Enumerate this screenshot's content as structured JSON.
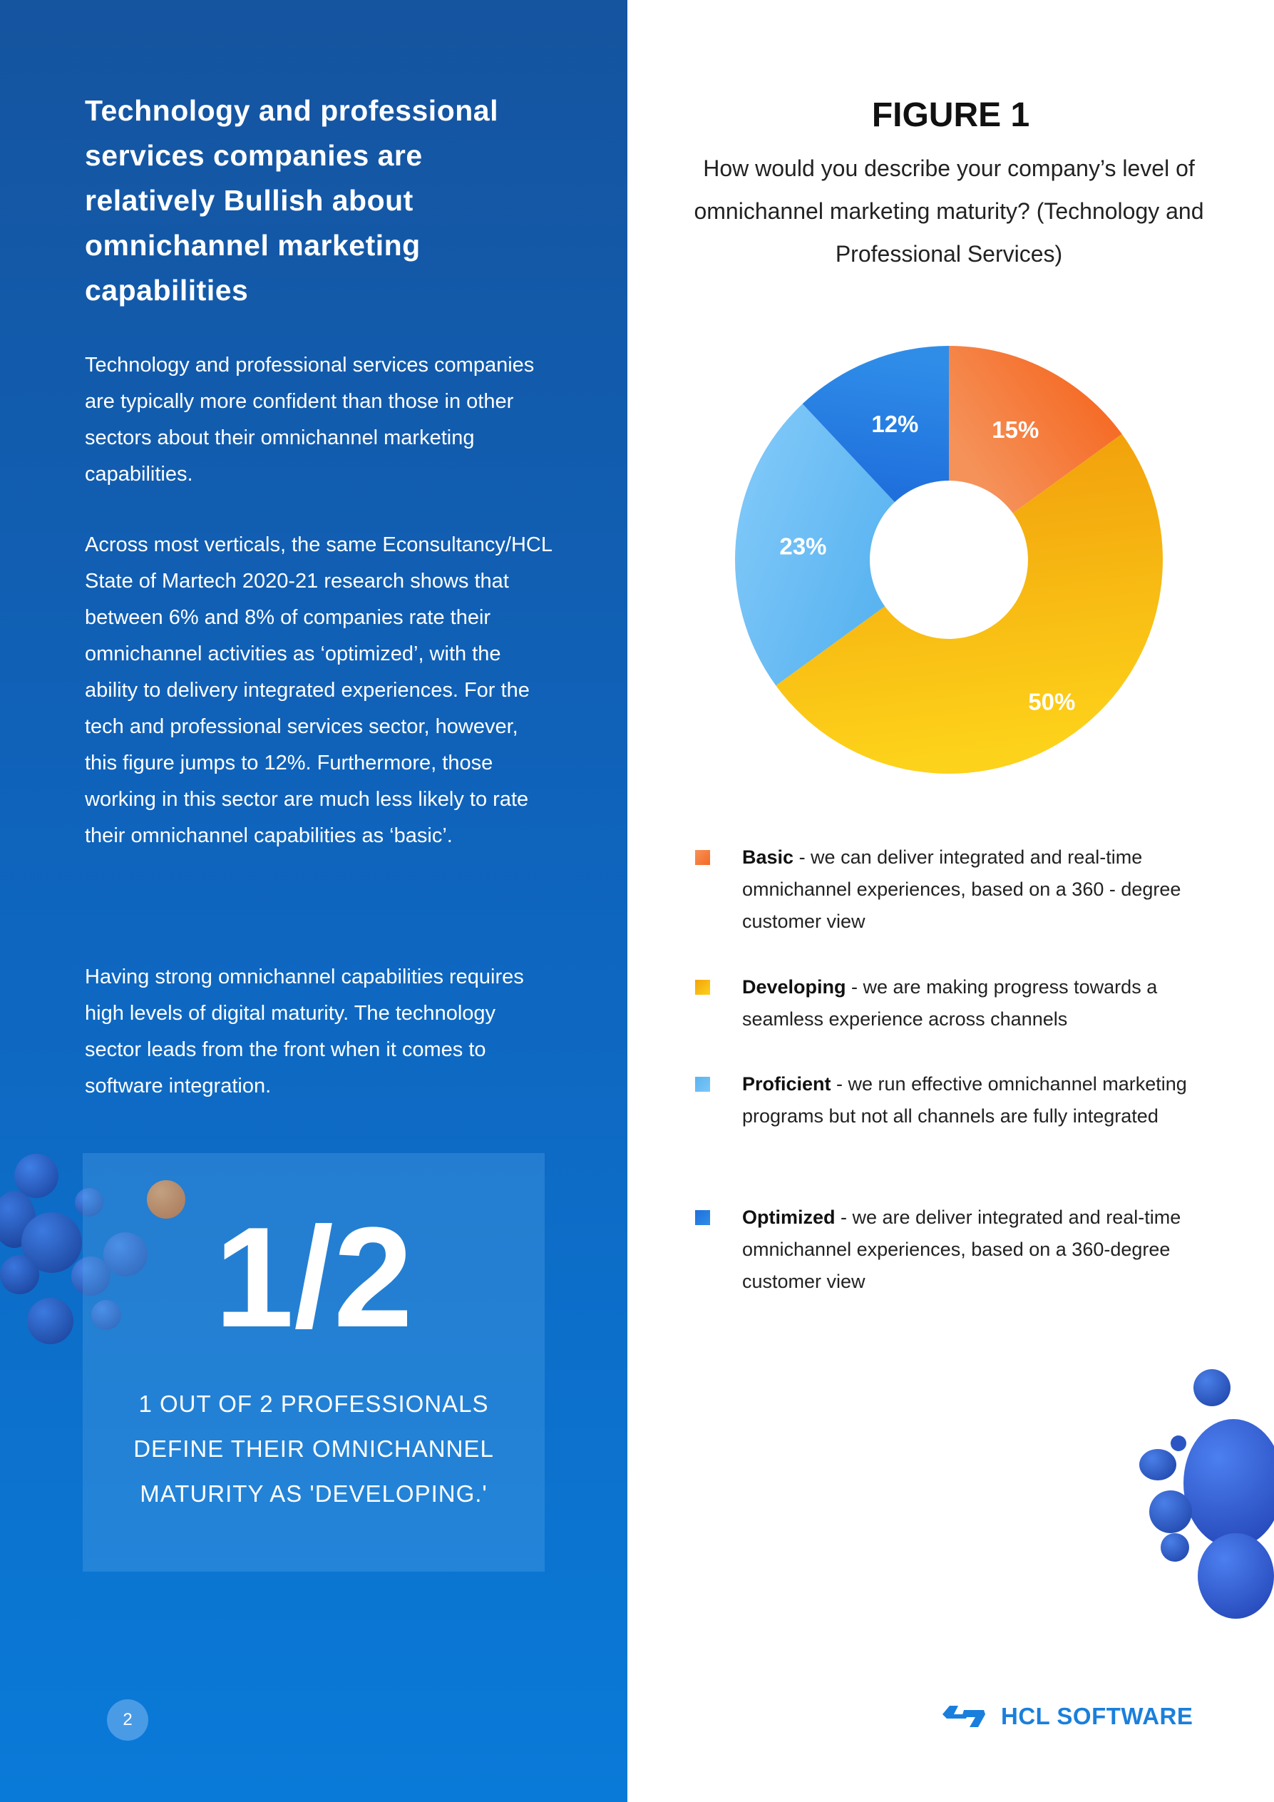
{
  "left": {
    "heading": "Technology and professional services companies are relatively Bullish about omnichannel marketing capabilities",
    "paragraphs": [
      "Technology and professional services companies are typically more confident than those in other sectors about their omnichannel marketing capabilities.",
      "Across most verticals, the same Econsultancy/HCL State of Martech 2020-21 research shows that between 6% and 8% of companies rate their omnichannel activities as ‘optimized’, with the ability to delivery integrated experiences. For the tech and professional services sector, however, this figure jumps to 12%. Furthermore, those working in this sector are much less likely to rate their omnichannel capabilities as ‘basic’.",
      "Having strong omnichannel capabilities requires high levels of digital maturity. The technology sector leads from the front when it comes to software integration."
    ],
    "stat": {
      "number": "1/2",
      "caption": "1 OUT OF 2 PROFESSIONALS DEFINE THEIR OMNICHANNEL MATURITY AS 'DEVELOPING.'"
    },
    "page_number": "2"
  },
  "figure": {
    "title": "FIGURE 1",
    "subtitle": "How would you describe your company’s level of omnichannel marketing maturity? (Technology and Professional Services)"
  },
  "chart_data": {
    "type": "pie",
    "donut": true,
    "start": "top, clockwise",
    "categories": [
      "Basic",
      "Developing",
      "Proficient",
      "Optimized"
    ],
    "values": [
      15,
      50,
      23,
      12
    ],
    "labels": [
      "15%",
      "50%",
      "23%",
      "12%"
    ],
    "colors": [
      [
        "#f5925a",
        "#f56a24"
      ],
      [
        "#f2a20c",
        "#fdd21a"
      ],
      [
        "#5ab4f0",
        "#7cc6f8"
      ],
      [
        "#1f6fdc",
        "#2f8de8"
      ]
    ],
    "legend": [
      {
        "name": "Basic",
        "desc": " - we can deliver integrated and real-time omnichannel experiences, based on a 360 - degree customer view"
      },
      {
        "name": "Developing",
        "desc": " - we are making progress towards a seamless experience across channels"
      },
      {
        "name": "Proficient",
        "desc": " - we run effective omnichannel marketing programs but not all channels are fully integrated"
      },
      {
        "name": "Optimized",
        "desc": " - we are deliver integrated and real-time omnichannel experiences, based on a 360-degree customer view"
      }
    ],
    "legend_placement": "bottom"
  },
  "logo": {
    "text": "HCL SOFTWARE",
    "color": "#1a7fdc"
  }
}
